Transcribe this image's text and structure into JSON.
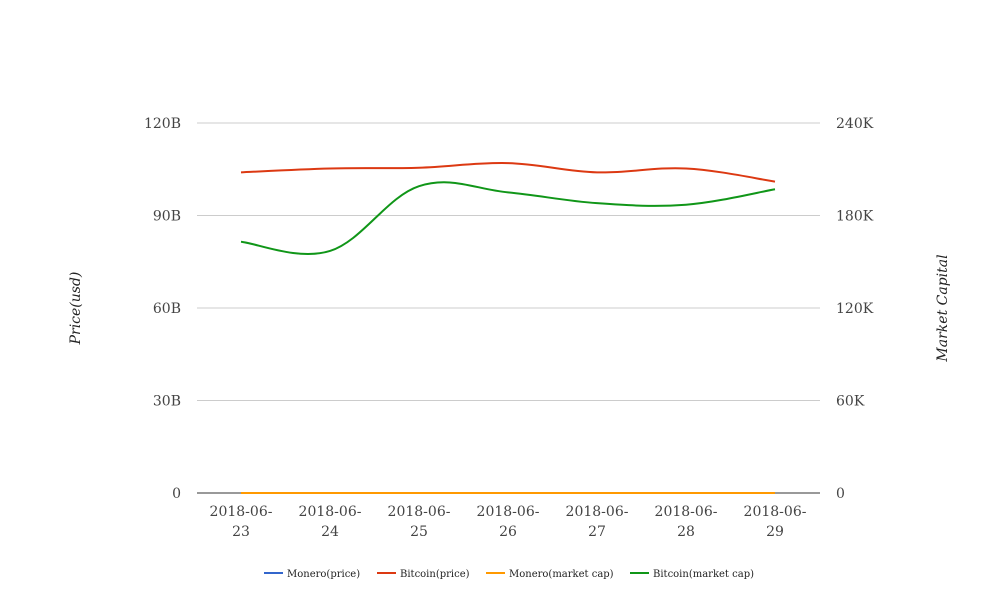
{
  "chart_data": {
    "type": "line",
    "x": [
      "2018-06-23",
      "2018-06-24",
      "2018-06-25",
      "2018-06-26",
      "2018-06-27",
      "2018-06-28",
      "2018-06-29"
    ],
    "x_tick_labels": [
      [
        "2018-06-",
        "23"
      ],
      [
        "2018-06-",
        "24"
      ],
      [
        "2018-06-",
        "25"
      ],
      [
        "2018-06-",
        "26"
      ],
      [
        "2018-06-",
        "27"
      ],
      [
        "2018-06-",
        "28"
      ],
      [
        "2018-06-",
        "29"
      ]
    ],
    "ylabel": "Price(usd)",
    "y2label": "Market Capital",
    "ylim": [
      0,
      120000000000
    ],
    "y2lim": [
      0,
      240000
    ],
    "y_ticks": [
      {
        "value": 0,
        "label": "0"
      },
      {
        "value": 30000000000,
        "label": "30B"
      },
      {
        "value": 60000000000,
        "label": "60B"
      },
      {
        "value": 90000000000,
        "label": "90B"
      },
      {
        "value": 120000000000,
        "label": "120B"
      }
    ],
    "y2_ticks": [
      {
        "value": 0,
        "label": "0"
      },
      {
        "value": 60000,
        "label": "60K"
      },
      {
        "value": 120000,
        "label": "120K"
      },
      {
        "value": 180000,
        "label": "180K"
      },
      {
        "value": 240000,
        "label": "240K"
      }
    ],
    "grid": true,
    "legend_position": "bottom",
    "series": [
      {
        "name": "Monero(price)",
        "axis": "left",
        "color": "#3366cc",
        "values": [
          0,
          0,
          0,
          0,
          0,
          0,
          0
        ]
      },
      {
        "name": "Bitcoin(price)",
        "axis": "right",
        "color": "#dc3912",
        "values": [
          208000,
          210500,
          211000,
          214000,
          208000,
          210500,
          202000
        ]
      },
      {
        "name": "Monero(market cap)",
        "axis": "left",
        "color": "#ff9900",
        "values": [
          0,
          0,
          0,
          0,
          0,
          0,
          0
        ]
      },
      {
        "name": "Bitcoin(market cap)",
        "axis": "left",
        "color": "#109618",
        "values": [
          81500000000,
          78500000000,
          99500000000,
          97500000000,
          94000000000,
          93500000000,
          98500000000
        ]
      }
    ]
  }
}
